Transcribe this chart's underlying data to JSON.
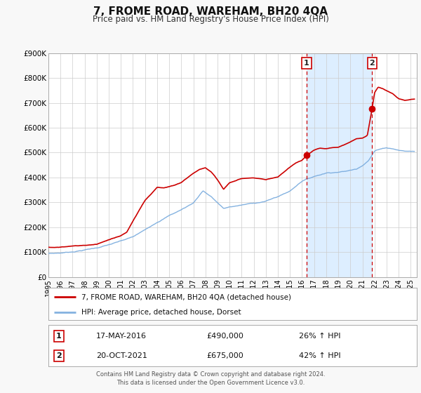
{
  "title": "7, FROME ROAD, WAREHAM, BH20 4QA",
  "subtitle": "Price paid vs. HM Land Registry's House Price Index (HPI)",
  "ylim": [
    0,
    900000
  ],
  "xlim_start": 1995.0,
  "xlim_end": 2025.5,
  "yticks": [
    0,
    100000,
    200000,
    300000,
    400000,
    500000,
    600000,
    700000,
    800000,
    900000
  ],
  "ytick_labels": [
    "£0",
    "£100K",
    "£200K",
    "£300K",
    "£400K",
    "£500K",
    "£600K",
    "£700K",
    "£800K",
    "£900K"
  ],
  "xticks": [
    1995,
    1996,
    1997,
    1998,
    1999,
    2000,
    2001,
    2002,
    2003,
    2004,
    2005,
    2006,
    2007,
    2008,
    2009,
    2010,
    2011,
    2012,
    2013,
    2014,
    2015,
    2016,
    2017,
    2018,
    2019,
    2020,
    2021,
    2022,
    2023,
    2024,
    2025
  ],
  "sale1_x": 2016.38,
  "sale1_y": 490000,
  "sale1_label": "1",
  "sale2_x": 2021.8,
  "sale2_y": 675000,
  "sale2_label": "2",
  "vline1_x": 2016.38,
  "vline2_x": 2021.8,
  "shaded_region_start": 2016.38,
  "shaded_region_end": 2021.8,
  "red_line_color": "#cc0000",
  "blue_line_color": "#77aadd",
  "shaded_color": "#ddeeff",
  "vline_color": "#cc0000",
  "legend_entry1": "7, FROME ROAD, WAREHAM, BH20 4QA (detached house)",
  "legend_entry2": "HPI: Average price, detached house, Dorset",
  "annotation1_date": "17-MAY-2016",
  "annotation1_price": "£490,000",
  "annotation1_hpi": "26% ↑ HPI",
  "annotation2_date": "20-OCT-2021",
  "annotation2_price": "£675,000",
  "annotation2_hpi": "42% ↑ HPI",
  "footer1": "Contains HM Land Registry data © Crown copyright and database right 2024.",
  "footer2": "This data is licensed under the Open Government Licence v3.0.",
  "bg_color": "#f8f8f8",
  "plot_bg_color": "#ffffff",
  "grid_color": "#cccccc"
}
